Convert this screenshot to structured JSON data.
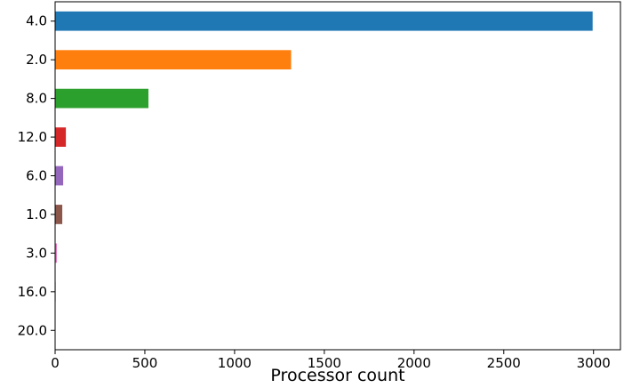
{
  "chart_data": {
    "type": "bar",
    "orientation": "horizontal",
    "title": "",
    "xlabel": "Processor count",
    "ylabel": "",
    "xlim": [
      0,
      3150
    ],
    "xticks": [
      0,
      500,
      1000,
      1500,
      2000,
      2500,
      3000
    ],
    "grid": false,
    "legend": "none",
    "categories": [
      "4.0",
      "2.0",
      "8.0",
      "12.0",
      "6.0",
      "1.0",
      "3.0",
      "16.0",
      "20.0"
    ],
    "values": [
      2995,
      1315,
      520,
      60,
      45,
      40,
      10,
      3,
      2
    ],
    "colors": [
      "#1f77b4",
      "#ff7f0e",
      "#2ca02c",
      "#d62728",
      "#9467bd",
      "#8c564b",
      "#e377c2",
      "#7f7f7f",
      "#bcbd22"
    ]
  }
}
